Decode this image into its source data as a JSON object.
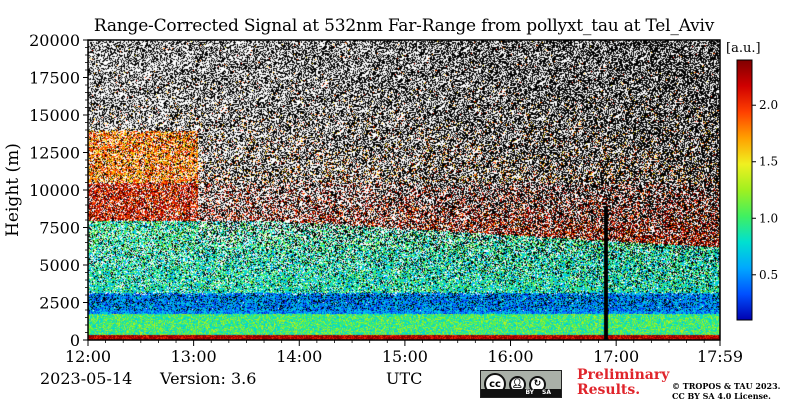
{
  "chart_data": {
    "type": "heatmap",
    "title": "Range-Corrected Signal at 532nm Far-Range from pollyxt_tau at Tel_Aviv",
    "xlabel": "UTC",
    "ylabel": "Height (m)",
    "x_tick_labels": [
      "12:00",
      "13:00",
      "14:00",
      "15:00",
      "16:00",
      "17:00",
      "17:59"
    ],
    "x_ticks_hours": [
      12.0,
      13.0,
      14.0,
      15.0,
      16.0,
      17.0,
      17.983
    ],
    "xlim_hours": [
      12.0,
      17.983
    ],
    "y_ticks": [
      0,
      2500,
      5000,
      7500,
      10000,
      12500,
      15000,
      17500,
      20000
    ],
    "ylim": [
      0,
      20000
    ],
    "colorbar": {
      "label": "[a.u.]",
      "range": [
        0.1,
        2.4
      ],
      "ticks": [
        0.5,
        1.0,
        1.5,
        2.0
      ],
      "tick_labels": [
        "0.5",
        "1.0",
        "1.5",
        "2.0"
      ],
      "colormap": [
        "#0000b0",
        "#0050ff",
        "#00a8ff",
        "#00e0d0",
        "#40f060",
        "#a0f020",
        "#f0f020",
        "#ffa000",
        "#ff4000",
        "#d00000",
        "#800000"
      ]
    },
    "layers": [
      {
        "height_m": [
          0,
          400
        ],
        "value": 2.3
      },
      {
        "height_m": [
          400,
          1800
        ],
        "value": 1.0
      },
      {
        "height_m": [
          1800,
          3200
        ],
        "value": 0.5
      },
      {
        "height_m": [
          3200,
          6000
        ],
        "value": 0.85
      },
      {
        "height_m": [
          8000,
          10500
        ],
        "value": 2.1
      }
    ],
    "gap_time_hours": 16.9,
    "noise_background": "#000000"
  },
  "footer": {
    "date": "2023-05-14",
    "version": "Version: 3.6",
    "preliminary_line1": "Preliminary",
    "preliminary_line2": "Results.",
    "copyright_line1": "© TROPOS & TAU 2023.",
    "copyright_line2": "CC BY SA 4.0 License.",
    "cc_text": "cc",
    "by_text": "BY",
    "sa_text": "SA"
  }
}
